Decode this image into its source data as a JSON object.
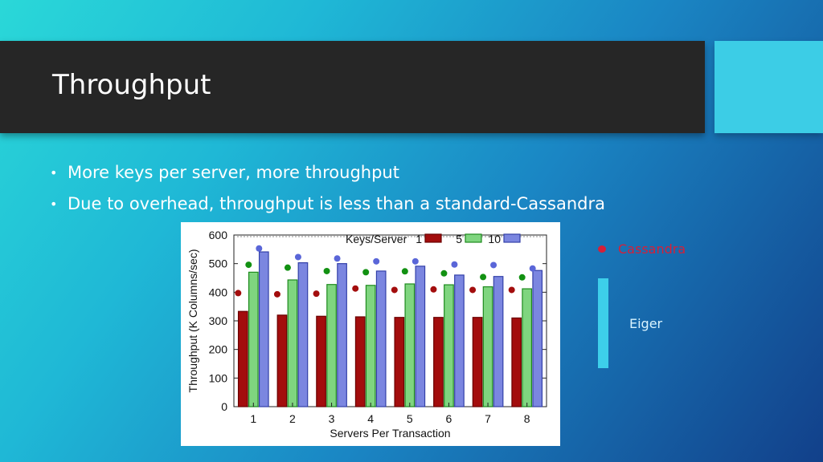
{
  "slide": {
    "title": "Throughput",
    "bullets": [
      "More keys per server, more throughput",
      "Due to overhead, throughput is less than a standard-Cassandra"
    ],
    "side_legend": {
      "cassandra_label": "Cassandra",
      "eiger_label": "Eiger",
      "cassandra_color": "#d61f38",
      "eiger_color": "#3dcfea"
    }
  },
  "chart_data": {
    "type": "bar",
    "title": "",
    "xlabel": "Servers Per Transaction",
    "ylabel": "Throughput (K Columns/sec)",
    "ylim": [
      0,
      600
    ],
    "yticks": [
      0,
      100,
      200,
      300,
      400,
      500,
      600
    ],
    "categories": [
      "1",
      "2",
      "3",
      "4",
      "5",
      "6",
      "7",
      "8"
    ],
    "legend_title": "Keys/Server",
    "legend_position": "top",
    "grid": false,
    "series": [
      {
        "name": "1",
        "color": "#a30d0d",
        "values": [
          333,
          320,
          316,
          314,
          312,
          312,
          312,
          310
        ],
        "cassandra_values": [
          397,
          393,
          395,
          413,
          408,
          410,
          408,
          408
        ]
      },
      {
        "name": "5",
        "color": "#7fd57f",
        "values": [
          470,
          443,
          427,
          424,
          429,
          426,
          419,
          412
        ],
        "cassandra_values": [
          496,
          486,
          474,
          470,
          473,
          466,
          453,
          452
        ]
      },
      {
        "name": "10",
        "color": "#7b86e0",
        "values": [
          541,
          503,
          500,
          474,
          491,
          460,
          455,
          476
        ],
        "cassandra_values": [
          553,
          523,
          518,
          508,
          508,
          497,
          495,
          483
        ]
      }
    ]
  }
}
